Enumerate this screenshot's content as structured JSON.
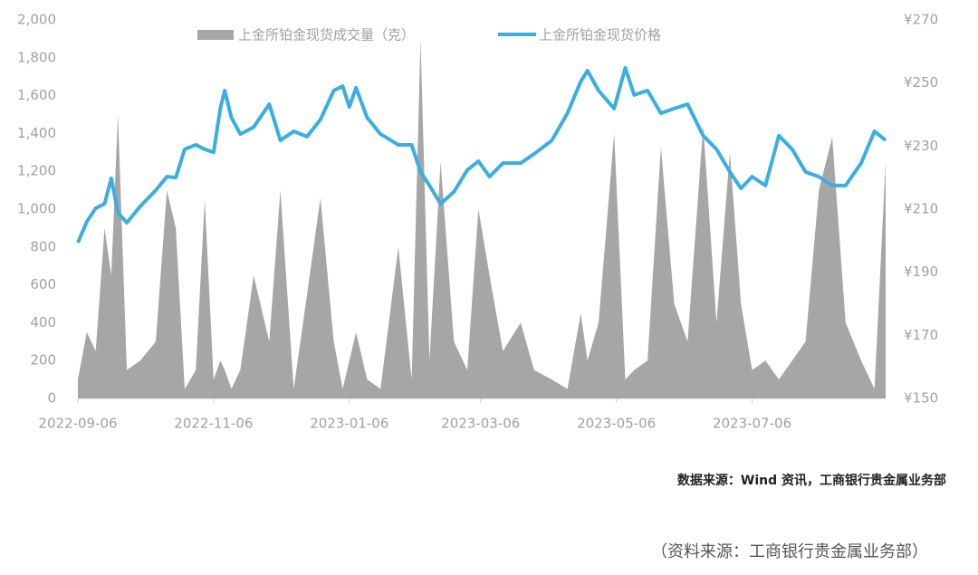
{
  "chart_data": {
    "type": "line-area",
    "x": [
      "2022-09-06",
      "2022-09-10",
      "2022-09-14",
      "2022-09-18",
      "2022-09-21",
      "2022-09-24",
      "2022-09-28",
      "2022-10-04",
      "2022-10-11",
      "2022-10-16",
      "2022-10-20",
      "2022-10-24",
      "2022-10-29",
      "2022-11-02",
      "2022-11-06",
      "2022-11-09",
      "2022-11-11",
      "2022-11-14",
      "2022-11-18",
      "2022-11-24",
      "2022-12-01",
      "2022-12-06",
      "2022-12-12",
      "2022-12-18",
      "2022-12-24",
      "2022-12-30",
      "2023-01-03",
      "2023-01-06",
      "2023-01-09",
      "2023-01-14",
      "2023-01-20",
      "2023-01-28",
      "2023-02-03",
      "2023-02-07",
      "2023-02-11",
      "2023-02-16",
      "2023-02-22",
      "2023-02-28",
      "2023-03-05",
      "2023-03-10",
      "2023-03-16",
      "2023-03-24",
      "2023-03-30",
      "2023-04-07",
      "2023-04-14",
      "2023-04-20",
      "2023-04-23",
      "2023-04-28",
      "2023-05-05",
      "2023-05-10",
      "2023-05-14",
      "2023-05-20",
      "2023-05-26",
      "2023-06-01",
      "2023-06-07",
      "2023-06-14",
      "2023-06-20",
      "2023-06-26",
      "2023-07-01",
      "2023-07-06",
      "2023-07-12",
      "2023-07-18",
      "2023-07-24",
      "2023-07-30",
      "2023-08-05",
      "2023-08-11",
      "2023-08-17",
      "2023-08-24",
      "2023-08-30",
      "2023-09-04"
    ],
    "xlim": [
      "2022-09-06",
      "2023-09-04"
    ],
    "xticks": [
      "2022-09-06",
      "2022-11-06",
      "2023-01-06",
      "2023-03-06",
      "2023-05-06",
      "2023-07-06"
    ],
    "series": [
      {
        "name": "上金所铂金现货成交量（克）",
        "type": "area",
        "color": "#a6a6a6",
        "values": [
          100,
          350,
          250,
          900,
          650,
          1500,
          150,
          200,
          300,
          1100,
          900,
          50,
          150,
          1050,
          100,
          200,
          150,
          50,
          150,
          650,
          300,
          1100,
          50,
          550,
          1060,
          300,
          50,
          200,
          350,
          100,
          50,
          800,
          100,
          1900,
          200,
          1250,
          300,
          150,
          1000,
          650,
          250,
          400,
          150,
          100,
          50,
          450,
          200,
          400,
          1400,
          100,
          150,
          200,
          1330,
          500,
          300,
          1440,
          400,
          1300,
          500,
          150,
          200,
          100,
          200,
          300,
          1100,
          1380,
          400,
          200,
          50,
          1250
        ]
      },
      {
        "name": "上金所铂金现货价格",
        "type": "line",
        "axis": "y2",
        "color": "#3aaee0",
        "values": [
          199.4,
          206,
          210.3,
          211.7,
          219.8,
          208.9,
          205.7,
          210.9,
          216,
          220.3,
          220,
          229,
          230.4,
          229,
          228,
          241.9,
          247.6,
          239,
          233.8,
          236,
          243.3,
          231.8,
          234.7,
          233,
          238.4,
          247.6,
          249,
          242.4,
          248.5,
          239,
          233.8,
          230.4,
          230.4,
          221.8,
          217.5,
          211.7,
          215.5,
          222.4,
          225.2,
          220.3,
          224.6,
          224.6,
          227.5,
          231.8,
          240.4,
          250.5,
          253.9,
          247.6,
          241.9,
          254.8,
          246.2,
          247.6,
          240.4,
          241.9,
          243.3,
          233.3,
          229,
          221.8,
          216.6,
          220.3,
          217.5,
          233.3,
          229,
          221.8,
          220.3,
          217.5,
          217.5,
          224.6,
          234.7,
          231.8
        ]
      }
    ],
    "ylim": [
      0,
      2000
    ],
    "yticks": [
      0,
      200,
      400,
      600,
      800,
      {
        "value": 1000,
        "label": "1,000"
      },
      {
        "value": 1200,
        "label": "1,200"
      },
      {
        "value": 1400,
        "label": "1,400"
      },
      {
        "value": 1600,
        "label": "1,600"
      },
      {
        "value": 1800,
        "label": "1,800"
      },
      {
        "value": 2000,
        "label": "2,000"
      }
    ],
    "y2lim": [
      150,
      270
    ],
    "y2ticks": [
      {
        "value": 150,
        "label": "¥150"
      },
      {
        "value": 170,
        "label": "¥170"
      },
      {
        "value": 190,
        "label": "¥190"
      },
      {
        "value": 210,
        "label": "¥210"
      },
      {
        "value": 230,
        "label": "¥230"
      },
      {
        "value": 250,
        "label": "¥250"
      },
      {
        "value": 270,
        "label": "¥270"
      }
    ],
    "source": "数据来源：Wind 资讯，工商银行贵金属业务部",
    "note": "（资料来源：工商银行贵金属业务部）"
  }
}
